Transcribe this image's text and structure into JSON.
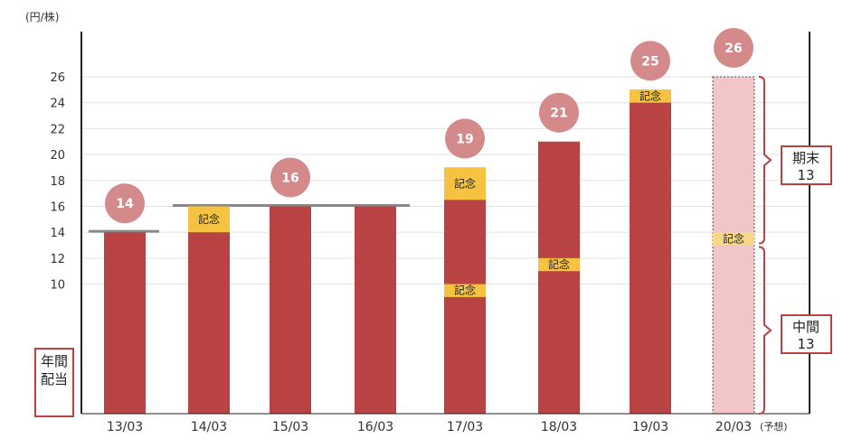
{
  "chart_data": {
    "type": "bar",
    "unit": "(円/株)",
    "ylabel": "年間配当",
    "categories": [
      "13/03",
      "14/03",
      "15/03",
      "16/03",
      "17/03",
      "18/03",
      "19/03",
      "20/03"
    ],
    "forecast_note": "(予想)",
    "values": [
      14,
      16,
      16,
      16,
      19,
      21,
      25,
      26
    ],
    "value_labels": [
      "14",
      "16",
      "16",
      "16",
      "19",
      "21",
      "25",
      "26"
    ],
    "value_labels_visible": [
      true,
      false,
      true,
      false,
      true,
      true,
      true,
      true
    ],
    "forecast_index": 7,
    "commemorative_label": "記念",
    "commemorative": [
      {
        "category": "14/03",
        "from": 14,
        "to": 16
      },
      {
        "category": "17/03",
        "from": 9,
        "to": 10
      },
      {
        "category": "17/03",
        "from": 16.5,
        "to": 19
      },
      {
        "category": "18/03",
        "from": 11,
        "to": 12
      },
      {
        "category": "19/03",
        "from": 24,
        "to": 25
      },
      {
        "category": "20/03",
        "from": 13,
        "to": 14
      }
    ],
    "reference_lines": [
      {
        "from": "13/03",
        "to": "13/03",
        "value": 14
      },
      {
        "from": "14/03",
        "to": "16/03",
        "value": 16
      }
    ],
    "yticks": [
      10,
      12,
      14,
      16,
      18,
      20,
      22,
      24,
      26
    ],
    "ylim": [
      0,
      30
    ],
    "grid": true,
    "colors": {
      "bar": "#b84342",
      "forecast_bar": "#f2c6c9",
      "commemorative": "#f5c242",
      "bubble": "#d4898b",
      "reference_line": "#888888",
      "bracket": "#b84342",
      "grid": "#e3e3e3",
      "axis": "#222222"
    },
    "annotations": [
      {
        "label": [
          "期末",
          "13"
        ],
        "range": [
          13,
          26
        ]
      },
      {
        "label": [
          "中間",
          "13"
        ],
        "range": [
          0,
          13
        ]
      }
    ]
  }
}
